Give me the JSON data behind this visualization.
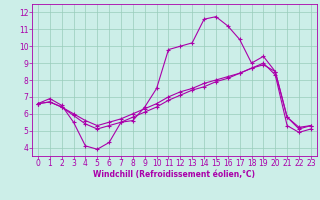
{
  "xlabel": "Windchill (Refroidissement éolien,°C)",
  "bg_color": "#cceee8",
  "line_color": "#aa00aa",
  "grid_color": "#99ccbb",
  "xlim": [
    -0.5,
    23.5
  ],
  "ylim": [
    3.5,
    12.5
  ],
  "xticks": [
    0,
    1,
    2,
    3,
    4,
    5,
    6,
    7,
    8,
    9,
    10,
    11,
    12,
    13,
    14,
    15,
    16,
    17,
    18,
    19,
    20,
    21,
    22,
    23
  ],
  "yticks": [
    4,
    5,
    6,
    7,
    8,
    9,
    10,
    11,
    12
  ],
  "line1_x": [
    0,
    1,
    2,
    3,
    4,
    5,
    6,
    7,
    8,
    9,
    10,
    11,
    12,
    13,
    14,
    15,
    16,
    17,
    18,
    19,
    20,
    21,
    22,
    23
  ],
  "line1_y": [
    6.6,
    6.9,
    6.5,
    5.5,
    4.1,
    3.9,
    4.3,
    5.5,
    5.6,
    6.4,
    7.5,
    9.8,
    10.0,
    10.2,
    11.6,
    11.75,
    11.2,
    10.4,
    9.0,
    9.4,
    8.5,
    5.8,
    5.1,
    5.3
  ],
  "line2_x": [
    0,
    1,
    2,
    3,
    4,
    5,
    6,
    7,
    8,
    9,
    10,
    11,
    12,
    13,
    14,
    15,
    16,
    17,
    18,
    19,
    20,
    21,
    22,
    23
  ],
  "line2_y": [
    6.6,
    6.7,
    6.4,
    6.0,
    5.6,
    5.3,
    5.5,
    5.7,
    6.0,
    6.3,
    6.6,
    7.0,
    7.3,
    7.5,
    7.8,
    8.0,
    8.2,
    8.4,
    8.7,
    8.9,
    8.5,
    5.8,
    5.2,
    5.3
  ],
  "line3_x": [
    0,
    1,
    2,
    3,
    4,
    5,
    6,
    7,
    8,
    9,
    10,
    11,
    12,
    13,
    14,
    15,
    16,
    17,
    18,
    19,
    20,
    21,
    22,
    23
  ],
  "line3_y": [
    6.6,
    6.7,
    6.4,
    5.9,
    5.4,
    5.1,
    5.3,
    5.5,
    5.8,
    6.1,
    6.4,
    6.8,
    7.1,
    7.4,
    7.6,
    7.9,
    8.1,
    8.4,
    8.7,
    9.0,
    8.3,
    5.3,
    4.9,
    5.1
  ],
  "tick_fontsize": 5.5,
  "xlabel_fontsize": 5.5
}
